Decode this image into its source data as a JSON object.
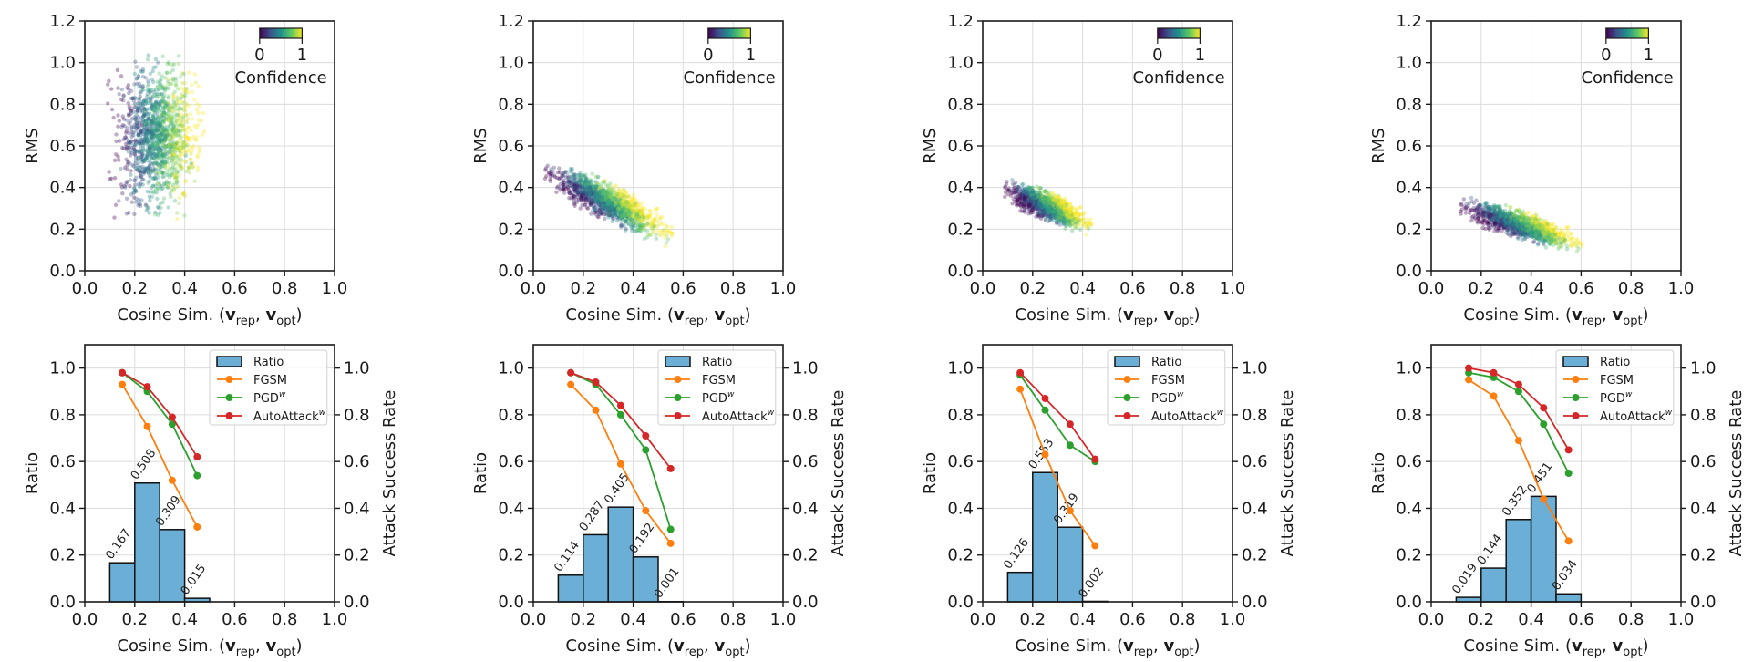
{
  "chart_data": [
    {
      "panel": 1,
      "top": {
        "type": "scatter",
        "xlabel": "Cosine Sim. (v_rep, v_opt)",
        "ylabel": "RMS",
        "xlim": [
          0.0,
          1.0
        ],
        "ylim": [
          0.0,
          1.2
        ],
        "xticks": [
          "0.0",
          "0.2",
          "0.4",
          "0.6",
          "0.8",
          "1.0"
        ],
        "yticks": [
          "0.0",
          "0.2",
          "0.4",
          "0.6",
          "0.8",
          "1.0",
          "1.2"
        ],
        "colorbar": {
          "label": "Confidence",
          "ticks": [
            "0",
            "1"
          ],
          "colormap": "viridis"
        },
        "cloud": {
          "x_range": [
            0.12,
            0.48
          ],
          "y_range": [
            0.33,
            1.05
          ],
          "x_center": 0.29,
          "y_center": 0.64,
          "slope": 0.0,
          "low_conf_side": "left"
        },
        "grid": true
      },
      "bottom": {
        "type": "bar+line",
        "xlabel": "Cosine Sim. (v_rep, v_opt)",
        "ylabel_left": "Ratio",
        "ylabel_right": "Attack Success Rate",
        "xlim": [
          0.0,
          1.0
        ],
        "ylim": [
          0.0,
          1.1
        ],
        "xticks": [
          "0.0",
          "0.2",
          "0.4",
          "0.6",
          "0.8",
          "1.0"
        ],
        "yticks": [
          "0.0",
          "0.2",
          "0.4",
          "0.6",
          "0.8",
          "1.0"
        ],
        "bins": [
          [
            0.1,
            0.2
          ],
          [
            0.2,
            0.3
          ],
          [
            0.3,
            0.4
          ],
          [
            0.4,
            0.5
          ]
        ],
        "ratio": [
          0.167,
          0.508,
          0.309,
          0.015
        ],
        "ratio_labels": [
          "0.167",
          "0.508",
          "0.309",
          "0.015"
        ],
        "line_x": [
          0.15,
          0.25,
          0.35,
          0.45
        ],
        "series": [
          {
            "name": "FGSM",
            "values": [
              0.93,
              0.75,
              0.52,
              0.32
            ]
          },
          {
            "name": "PGD^w",
            "values": [
              0.98,
              0.9,
              0.76,
              0.54
            ]
          },
          {
            "name": "AutoAttack^w",
            "values": [
              0.98,
              0.92,
              0.79,
              0.62
            ]
          }
        ],
        "legend": "top-right",
        "grid": true
      }
    },
    {
      "panel": 2,
      "top": {
        "type": "scatter",
        "xlabel": "Cosine Sim. (v_rep, v_opt)",
        "ylabel": "RMS",
        "xlim": [
          0.0,
          1.0
        ],
        "ylim": [
          0.0,
          1.2
        ],
        "xticks": [
          "0.0",
          "0.2",
          "0.4",
          "0.6",
          "0.8",
          "1.0"
        ],
        "yticks": [
          "0.0",
          "0.2",
          "0.4",
          "0.6",
          "0.8",
          "1.0",
          "1.2"
        ],
        "colorbar": {
          "label": "Confidence",
          "ticks": [
            "0",
            "1"
          ],
          "colormap": "viridis"
        },
        "cloud": {
          "x_range": [
            0.09,
            0.56
          ],
          "y_range": [
            0.17,
            0.58
          ],
          "x_center": 0.3,
          "y_center": 0.33,
          "slope": -0.55,
          "low_conf_side": "left"
        },
        "grid": true
      },
      "bottom": {
        "type": "bar+line",
        "xlabel": "Cosine Sim. (v_rep, v_opt)",
        "ylabel_left": "Ratio",
        "ylabel_right": "Attack Success Rate",
        "xlim": [
          0.0,
          1.0
        ],
        "ylim": [
          0.0,
          1.1
        ],
        "xticks": [
          "0.0",
          "0.2",
          "0.4",
          "0.6",
          "0.8",
          "1.0"
        ],
        "yticks": [
          "0.0",
          "0.2",
          "0.4",
          "0.6",
          "0.8",
          "1.0"
        ],
        "bins": [
          [
            0.1,
            0.2
          ],
          [
            0.2,
            0.3
          ],
          [
            0.3,
            0.4
          ],
          [
            0.4,
            0.5
          ],
          [
            0.5,
            0.6
          ]
        ],
        "ratio": [
          0.114,
          0.287,
          0.405,
          0.192,
          0.001
        ],
        "ratio_labels": [
          "0.114",
          "0.287",
          "0.405",
          "0.192",
          "0.001"
        ],
        "line_x": [
          0.15,
          0.25,
          0.35,
          0.45,
          0.55
        ],
        "series": [
          {
            "name": "FGSM",
            "values": [
              0.93,
              0.82,
              0.59,
              0.39,
              0.25
            ]
          },
          {
            "name": "PGD^w",
            "values": [
              0.98,
              0.93,
              0.8,
              0.65,
              0.31
            ]
          },
          {
            "name": "AutoAttack^w",
            "values": [
              0.98,
              0.94,
              0.84,
              0.71,
              0.57
            ]
          }
        ],
        "legend": "top-right",
        "grid": true
      }
    },
    {
      "panel": 3,
      "top": {
        "type": "scatter",
        "xlabel": "Cosine Sim. (v_rep, v_opt)",
        "ylabel": "RMS",
        "xlim": [
          0.0,
          1.0
        ],
        "ylim": [
          0.0,
          1.2
        ],
        "xticks": [
          "0.0",
          "0.2",
          "0.4",
          "0.6",
          "0.8",
          "1.0"
        ],
        "yticks": [
          "0.0",
          "0.2",
          "0.4",
          "0.6",
          "0.8",
          "1.0",
          "1.2"
        ],
        "colorbar": {
          "label": "Confidence",
          "ticks": [
            "0",
            "1"
          ],
          "colormap": "viridis"
        },
        "cloud": {
          "x_range": [
            0.1,
            0.42
          ],
          "y_range": [
            0.19,
            0.5
          ],
          "x_center": 0.26,
          "y_center": 0.31,
          "slope": -0.45,
          "low_conf_side": "left"
        },
        "grid": true
      },
      "bottom": {
        "type": "bar+line",
        "xlabel": "Cosine Sim. (v_rep, v_opt)",
        "ylabel_left": "Ratio",
        "ylabel_right": "Attack Success Rate",
        "xlim": [
          0.0,
          1.0
        ],
        "ylim": [
          0.0,
          1.1
        ],
        "xticks": [
          "0.0",
          "0.2",
          "0.4",
          "0.6",
          "0.8",
          "1.0"
        ],
        "yticks": [
          "0.0",
          "0.2",
          "0.4",
          "0.6",
          "0.8",
          "1.0"
        ],
        "bins": [
          [
            0.1,
            0.2
          ],
          [
            0.2,
            0.3
          ],
          [
            0.3,
            0.4
          ],
          [
            0.4,
            0.5
          ]
        ],
        "ratio": [
          0.126,
          0.553,
          0.319,
          0.002
        ],
        "ratio_labels": [
          "0.126",
          "0.553",
          "0.319",
          "0.002"
        ],
        "line_x": [
          0.15,
          0.25,
          0.35,
          0.45
        ],
        "series": [
          {
            "name": "FGSM",
            "values": [
              0.91,
              0.63,
              0.39,
              0.24
            ]
          },
          {
            "name": "PGD^w",
            "values": [
              0.97,
              0.82,
              0.67,
              0.6
            ]
          },
          {
            "name": "AutoAttack^w",
            "values": [
              0.98,
              0.87,
              0.76,
              0.61
            ]
          }
        ],
        "legend": "top-right",
        "grid": true
      }
    },
    {
      "panel": 4,
      "top": {
        "type": "scatter",
        "xlabel": "Cosine Sim. (v_rep, v_opt)",
        "ylabel": "RMS",
        "xlim": [
          0.0,
          1.0
        ],
        "ylim": [
          0.0,
          1.2
        ],
        "xticks": [
          "0.0",
          "0.2",
          "0.4",
          "0.6",
          "0.8",
          "1.0"
        ],
        "yticks": [
          "0.0",
          "0.2",
          "0.4",
          "0.6",
          "0.8",
          "1.0",
          "1.2"
        ],
        "colorbar": {
          "label": "Confidence",
          "ticks": [
            "0",
            "1"
          ],
          "colormap": "viridis"
        },
        "cloud": {
          "x_range": [
            0.12,
            0.57
          ],
          "y_range": [
            0.12,
            0.42
          ],
          "x_center": 0.36,
          "y_center": 0.22,
          "slope": -0.35,
          "low_conf_side": "left"
        },
        "grid": true
      },
      "bottom": {
        "type": "bar+line",
        "xlabel": "Cosine Sim. (v_rep, v_opt)",
        "ylabel_left": "Ratio",
        "ylabel_right": "Attack Success Rate",
        "xlim": [
          0.0,
          1.0
        ],
        "ylim": [
          0.0,
          1.1
        ],
        "xticks": [
          "0.0",
          "0.2",
          "0.4",
          "0.6",
          "0.8",
          "1.0"
        ],
        "yticks": [
          "0.0",
          "0.2",
          "0.4",
          "0.6",
          "0.8",
          "1.0"
        ],
        "bins": [
          [
            0.1,
            0.2
          ],
          [
            0.2,
            0.3
          ],
          [
            0.3,
            0.4
          ],
          [
            0.4,
            0.5
          ],
          [
            0.5,
            0.6
          ]
        ],
        "ratio": [
          0.019,
          0.144,
          0.352,
          0.451,
          0.034
        ],
        "ratio_labels": [
          "0.019",
          "0.144",
          "0.352",
          "0.451",
          "0.034"
        ],
        "line_x": [
          0.15,
          0.25,
          0.35,
          0.45,
          0.55
        ],
        "series": [
          {
            "name": "FGSM",
            "values": [
              0.95,
              0.88,
              0.69,
              0.44,
              0.26
            ]
          },
          {
            "name": "PGD^w",
            "values": [
              0.98,
              0.96,
              0.9,
              0.76,
              0.55
            ]
          },
          {
            "name": "AutoAttack^w",
            "values": [
              1.0,
              0.98,
              0.93,
              0.83,
              0.65
            ]
          }
        ],
        "legend": "top-right",
        "grid": true
      }
    }
  ],
  "labels": {
    "xlabel_main": "Cosine Sim. (",
    "xlabel_v": "v",
    "xlabel_rep": "rep",
    "xlabel_opt": "opt",
    "xlabel_sep": ", ",
    "xlabel_close": ")",
    "rms": "RMS",
    "ratio": "Ratio",
    "asr": "Attack Success Rate",
    "confidence": "Confidence",
    "cbar_lo": "0",
    "cbar_hi": "1",
    "legend_ratio": "Ratio",
    "legend_fgsm": "FGSM",
    "legend_pgd": "PGD",
    "legend_aa": "AutoAttack",
    "legend_sup": "w"
  },
  "colors": {
    "bar": "#6baed6",
    "fgsm": "#ff7f0e",
    "pgd": "#2ca02c",
    "aa": "#d62728",
    "grid": "#dcdcdc",
    "axis": "#1a1a1a"
  }
}
